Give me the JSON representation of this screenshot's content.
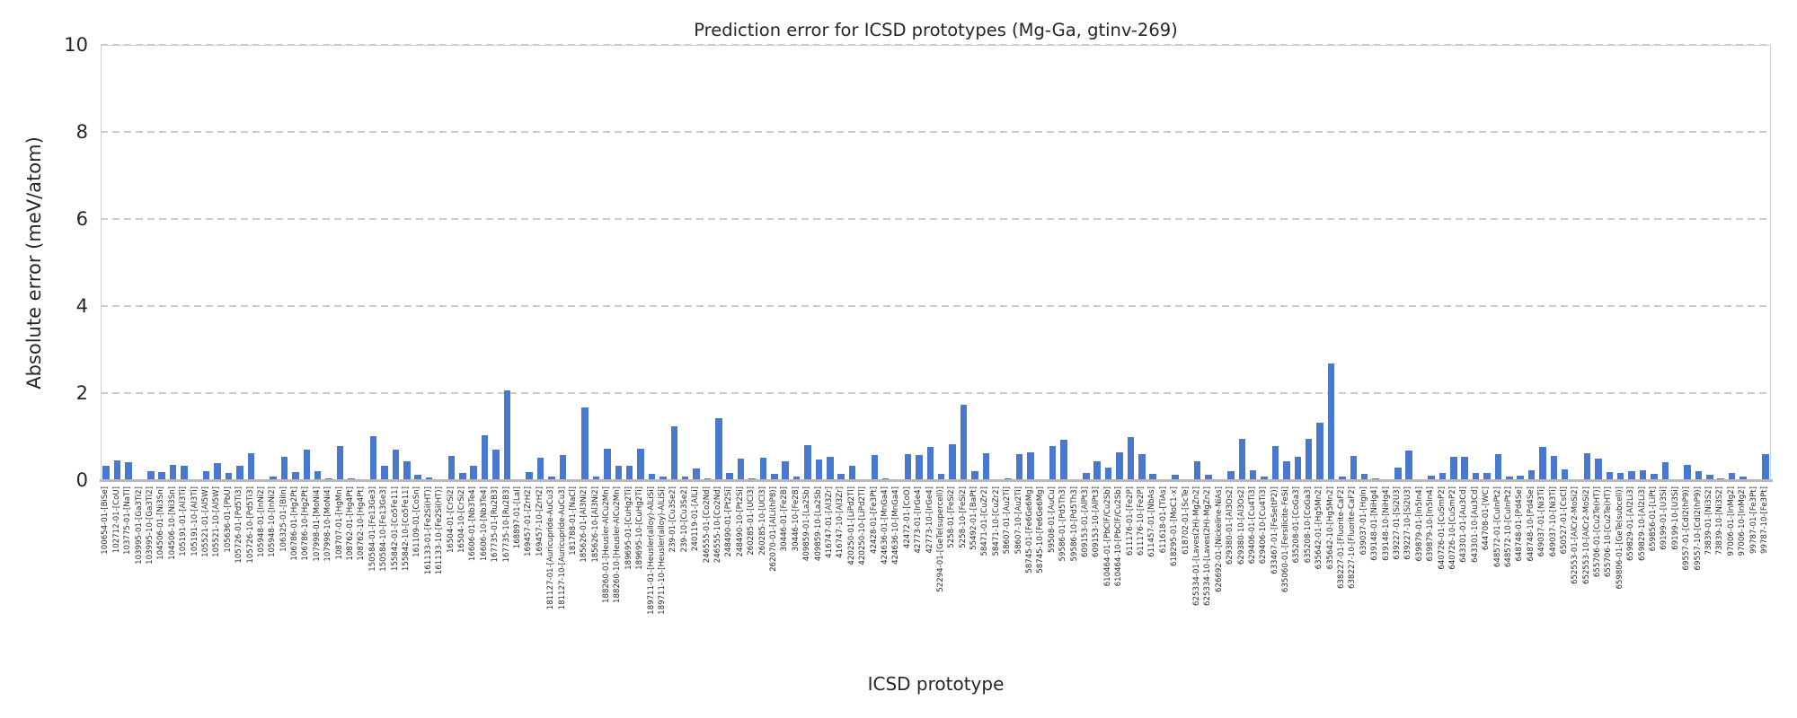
{
  "chart_data": {
    "type": "bar",
    "title": "Prediction error for ICSD prototypes (Mg-Ga, gtinv-269)",
    "xlabel": "ICSD prototype",
    "ylabel": "Absolute error (meV/atom)",
    "ylim": [
      0,
      10
    ],
    "yticks": [
      0,
      2,
      4,
      6,
      8,
      10
    ],
    "grid": "dashed-horizontal",
    "legend": "none",
    "bar_color": "#4878D0",
    "categories": [
      "100654-01-[BiSe]",
      "102712-01-[CoU]",
      "103775-01-[NaTl]",
      "103995-01-[Ga3Ti2]",
      "103995-10-[Ga3Ti2]",
      "104506-01-[Ni3Sn]",
      "104506-10-[Ni3Sn]",
      "105191-01-[Al3Ti]",
      "105191-10-[Al3Ti]",
      "105521-01-[Al5W]",
      "105521-10-[Al5W]",
      "105636-01-[PbU]",
      "105726-01-[Pd5Ti3]",
      "105726-10-[Pd5Ti3]",
      "105948-01-[InNi2]",
      "105948-10-[InNi2]",
      "106325-01-[BiIn]",
      "106786-01-[Hg2Pt]",
      "106786-10-[Hg2Pt]",
      "107998-01-[MoNi4]",
      "107998-10-[MoNi4]",
      "108707-01-[HgMn]",
      "108762-01-[Hg4Pt]",
      "108762-10-[Hg4Pt]",
      "150584-01-[Fe13Ge3]",
      "150584-10-[Fe13Ge3]",
      "155842-01-[Co5Fe11]",
      "155842-10-[Co5Fe11]",
      "161109-01-[CoSn]",
      "161133-01-[Fe2Si(HT)]",
      "161133-10-[Fe2Si(HT)]",
      "16504-01-[CrSi2]",
      "16504-10-[CrSi2]",
      "16606-01-[Nb3Te4]",
      "16606-10-[Nb3Te4]",
      "167735-01-[Ru2B3]",
      "167735-10-[Ru2B3]",
      "168897-01-[LaI]",
      "169457-01-[ZrH2]",
      "169457-10-[ZrH2]",
      "181127-01-[Auricupride-AuCu3]",
      "181127-10-[Auricupride-AuCu3]",
      "181788-01-[NaCl]",
      "185626-01-[Al3Ni2]",
      "185626-10-[Al3Ni2]",
      "188260-01-[Heusler-AlCu2Mn]",
      "188260-10-[Heusler-AlCu2Mn]",
      "189695-01-[CuHg2Ti]",
      "189695-10-[CuHg2Ti]",
      "189711-01-[Heusler(alloy)-AlLiSi]",
      "189711-10-[Heusler(alloy)-AlLiSi]",
      "239-01-[Cu3Se2]",
      "239-10-[Cu3Se2]",
      "240119-01-[AlLi]",
      "246555-01-[Co2Nd]",
      "246555-10-[Co2Nd]",
      "248490-01-[Pt2Si]",
      "248490-10-[Pt2Si]",
      "260285-01-[UCl3]",
      "260285-10-[UCl3]",
      "262070-01-[AlLi(hP8)]",
      "30446-01-[Fe2B]",
      "30446-10-[Fe2B]",
      "409859-01-[La2Sb]",
      "409859-10-[La2Sb]",
      "416747-01-[Al3Zr]",
      "416747-10-[Al3Zr]",
      "420250-01-[LiPd2Tl]",
      "420250-10-[LiPd2Tl]",
      "42428-01-[Fe3Pt]",
      "424636-01-[MnGa4]",
      "424636-10-[MnGa4]",
      "42472-01-[CoO]",
      "42773-01-[IrGe4]",
      "42773-10-[IrGe4]",
      "52294-01-[GeTe(supercell)]",
      "5258-01-[FeSi2]",
      "5258-10-[FeSi2]",
      "55492-01-[BaPt]",
      "58471-01-[CuZr2]",
      "58471-10-[CuZr2]",
      "58607-01-[Au2Ti]",
      "58607-10-[Au2Ti]",
      "58745-01-[Fe6Ge6Mg]",
      "58745-10-[Fe6Ge6Mg]",
      "59508-01-[AuCu]",
      "59586-01-[Pd5Th3]",
      "59586-10-[Pd5Th3]",
      "609153-01-[AlPt3]",
      "609153-10-[AlPt3]",
      "610464-01-[PbClF/Cu2Sb]",
      "610464-10-[PbClF/Cu2Sb]",
      "611176-01-[Fe2P]",
      "611176-10-[Fe2P]",
      "611457-01-[NbAs]",
      "611618-01-[TiAs]",
      "618295-01-[MoC1-x]",
      "618702-01-[ScTe]",
      "625334-01-[Laves(2H)-MgZn2]",
      "625334-10-[Laves(2H)-MgZn2]",
      "626692-01-[Nickeline-NiAs]",
      "629380-01-[Al3Os2]",
      "629380-10-[Al3Os2]",
      "629406-01-[Cu4Ti3]",
      "629406-10-[Cu4Ti3]",
      "633467-01-[FeSe(tP2)]",
      "635060-01-[Fersilicite-FeSi]",
      "635208-01-[CoGa3]",
      "635208-10-[CoGa3]",
      "635642-01-[Hg5Mn2]",
      "635642-10-[Hg5Mn2]",
      "638227-01-[Fluorite-CaF2]",
      "638227-10-[Fluorite-CaF2]",
      "639037-01-[HgIn]",
      "639148-01-[NiHg4]",
      "639148-10-[NiHg4]",
      "639227-01-[Si2U3]",
      "639227-10-[Si2U3]",
      "639879-01-[In5In4]",
      "639879-10-[In5In4]",
      "640726-01-[CuSmP2]",
      "640726-10-[CuSmP2]",
      "643301-01-[Au3Cd]",
      "643301-10-[Au3Cd]",
      "644708-01-[WC]",
      "648572-01-[CuInPt2]",
      "648572-10-[CuInPt2]",
      "648748-01-[Pd4Se]",
      "648748-10-[Pd4Se]",
      "649037-01-[Ni3Ti]",
      "649037-10-[Ni3Ti]",
      "650527-01-[CsCl]",
      "652553-01-[AlCr2-MoSi2]",
      "652553-10-[AlCr2-MoSi2]",
      "655706-01-[Cu2Te(HT)]",
      "655706-10-[Cu2Te(HT)]",
      "659806-01-[GeTe(subcell)]",
      "659829-01-[Al2Li3]",
      "659829-10-[Al2Li3]",
      "659856-01-[LiPt]",
      "69199-01-[U3Si]",
      "69199-10-[U3Si]",
      "69557-01-[CdI2(hP9)]",
      "69557-10-[CdI2(hP9)]",
      "73839-01-[Ni3S2]",
      "73839-10-[Ni3S2]",
      "97006-01-[InMg2]",
      "97006-10-[InMg2]",
      "99787-01-[Fe3Pt]",
      "99787-10-[Fe3Pt]"
    ],
    "values": [
      0.33,
      0.45,
      0.41,
      0.02,
      0.21,
      0.19,
      0.36,
      0.34,
      0.02,
      0.21,
      0.39,
      0.16,
      0.34,
      0.62,
      0.02,
      0.08,
      0.53,
      0.19,
      0.71,
      0.2,
      0.05,
      0.78,
      0.05,
      0.02,
      1.01,
      0.33,
      0.7,
      0.44,
      0.12,
      0.06,
      0.02,
      0.55,
      0.17,
      0.33,
      1.03,
      0.71,
      2.06,
      0.02,
      0.19,
      0.52,
      0.09,
      0.58,
      0.02,
      1.66,
      0.09,
      0.72,
      0.34,
      0.34,
      0.73,
      0.15,
      0.08,
      1.23,
      0.09,
      0.27,
      0.05,
      1.42,
      0.17,
      0.49,
      0.05,
      0.52,
      0.15,
      0.43,
      0.08,
      0.81,
      0.47,
      0.54,
      0.15,
      0.32,
      0.02,
      0.58,
      0.04,
      0.02,
      0.6,
      0.58,
      0.76,
      0.15,
      0.83,
      1.74,
      0.2,
      0.61,
      0.02,
      0.05,
      0.6,
      0.64,
      0.02,
      0.78,
      0.93,
      0.03,
      0.17,
      0.43,
      0.28,
      0.63,
      0.98,
      0.6,
      0.15,
      0.02,
      0.12,
      0.02,
      0.43,
      0.12,
      0.02,
      0.21,
      0.95,
      0.23,
      0.09,
      0.78,
      0.43,
      0.53,
      0.95,
      1.31,
      2.68,
      0.09,
      0.56,
      0.15,
      0.05,
      0.02,
      0.29,
      0.68,
      0.02,
      0.11,
      0.17,
      0.54,
      0.54,
      0.16,
      0.17,
      0.6,
      0.08,
      0.1,
      0.23,
      0.76,
      0.55,
      0.25,
      0.02,
      0.62,
      0.49,
      0.18,
      0.16,
      0.21,
      0.23,
      0.14,
      0.41,
      0.02,
      0.36,
      0.21,
      0.12,
      0.05,
      0.17,
      0.08,
      0.02,
      0.6
    ]
  }
}
